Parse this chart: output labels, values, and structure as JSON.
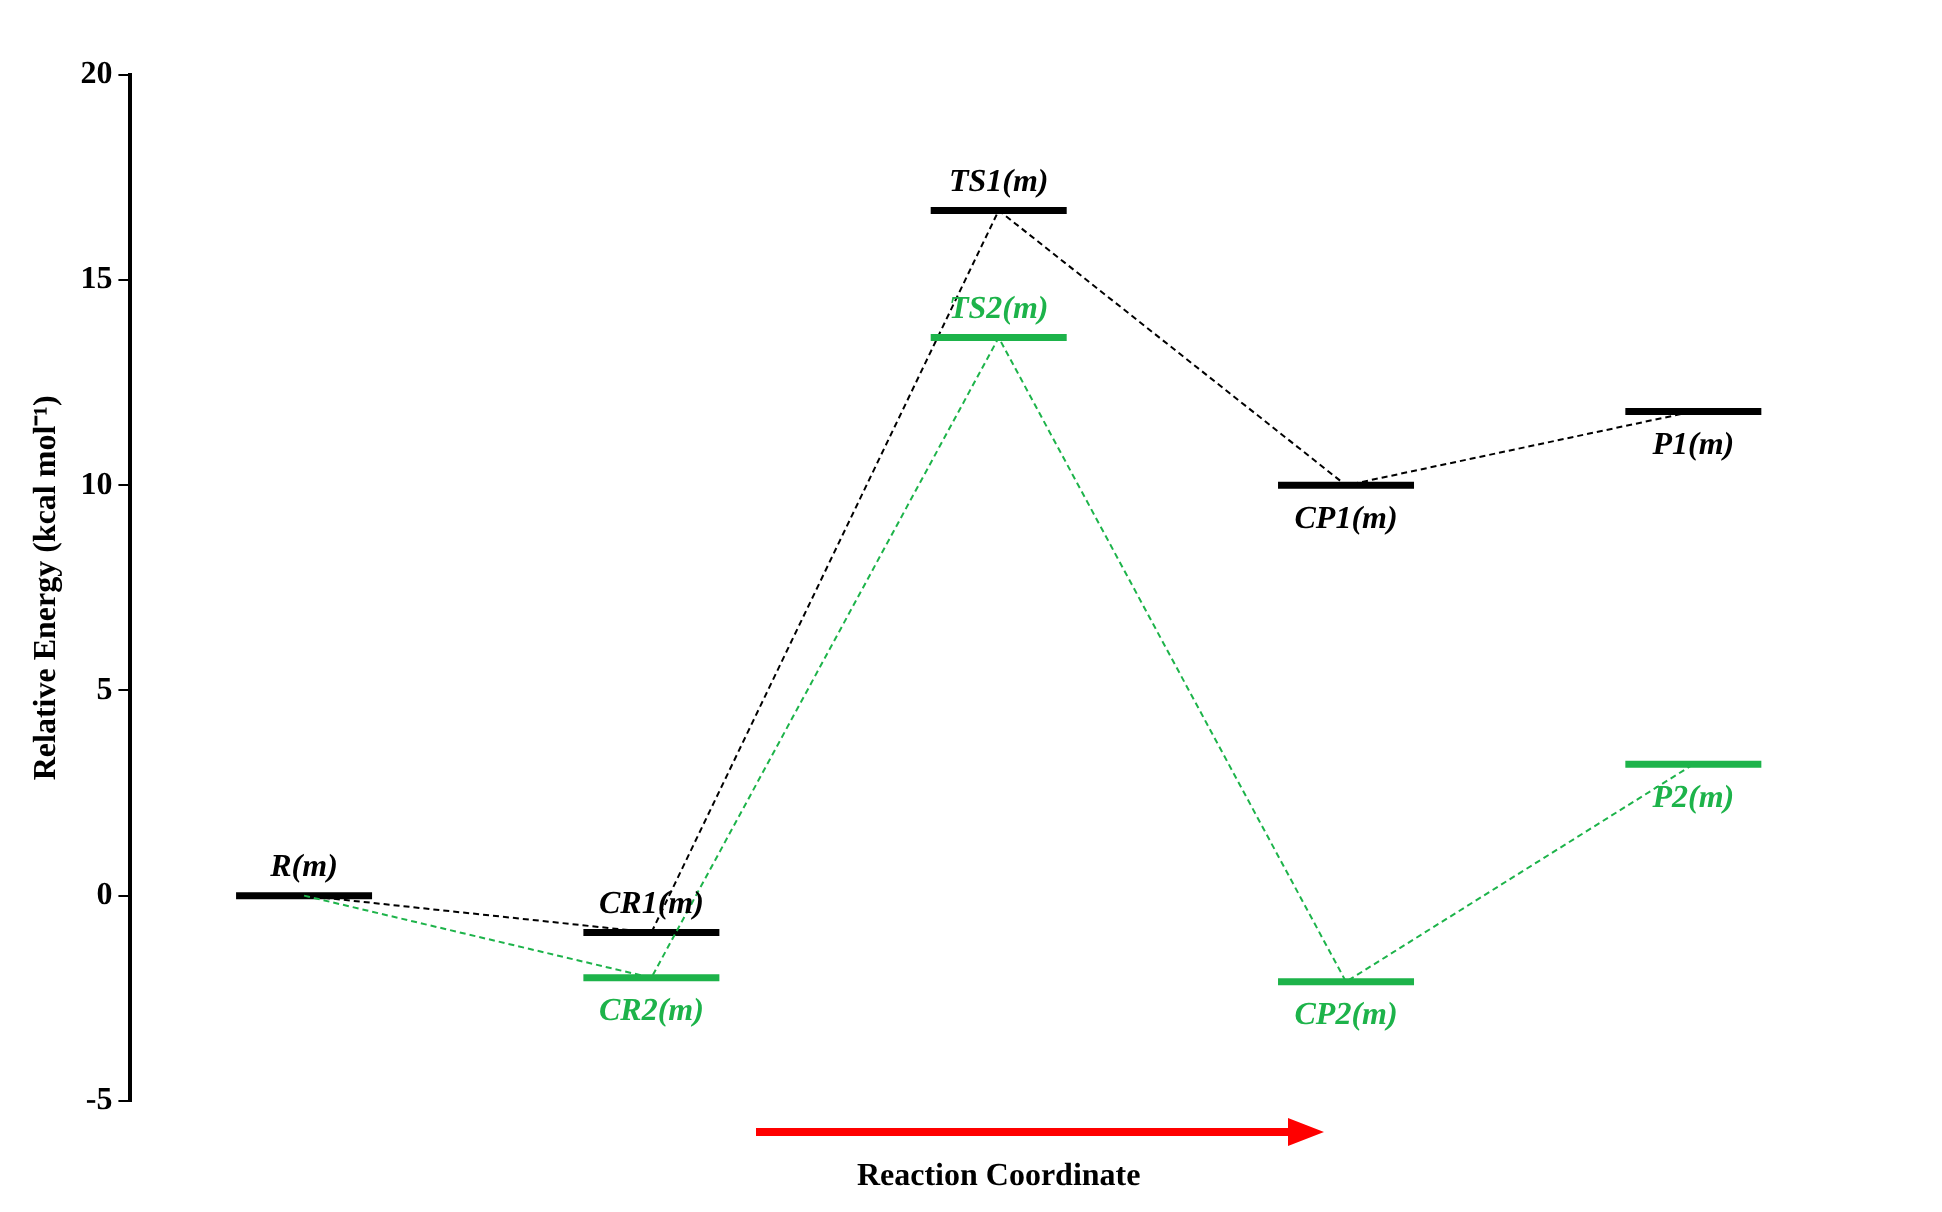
{
  "chart_data": {
    "type": "line",
    "xlabel": "Reaction Coordinate",
    "ylabel": "Relative Energy (kcal mol⁻¹)",
    "categories": [
      null,
      null,
      null,
      null,
      null
    ],
    "series": [
      {
        "color": "#000000",
        "values": [
          0,
          -0.9,
          16.7,
          10.0,
          11.8
        ],
        "value_labels": [
          "R(m)",
          "CR1(m)",
          "TS1(m)",
          "CP1(m)",
          "P1(m)"
        ]
      },
      {
        "color": "#1db34a",
        "values": [
          0,
          -2.0,
          13.6,
          -2.1,
          3.2
        ],
        "value_labels": [
          null,
          "CR2(m)",
          "TS2(m)",
          "CP2(m)",
          "P2(m)"
        ]
      }
    ],
    "ylim": [
      -5,
      20
    ],
    "yticks": [
      -5,
      0,
      5,
      10,
      15,
      20
    ],
    "grid": false,
    "legend": false,
    "line_style": "dashed"
  }
}
